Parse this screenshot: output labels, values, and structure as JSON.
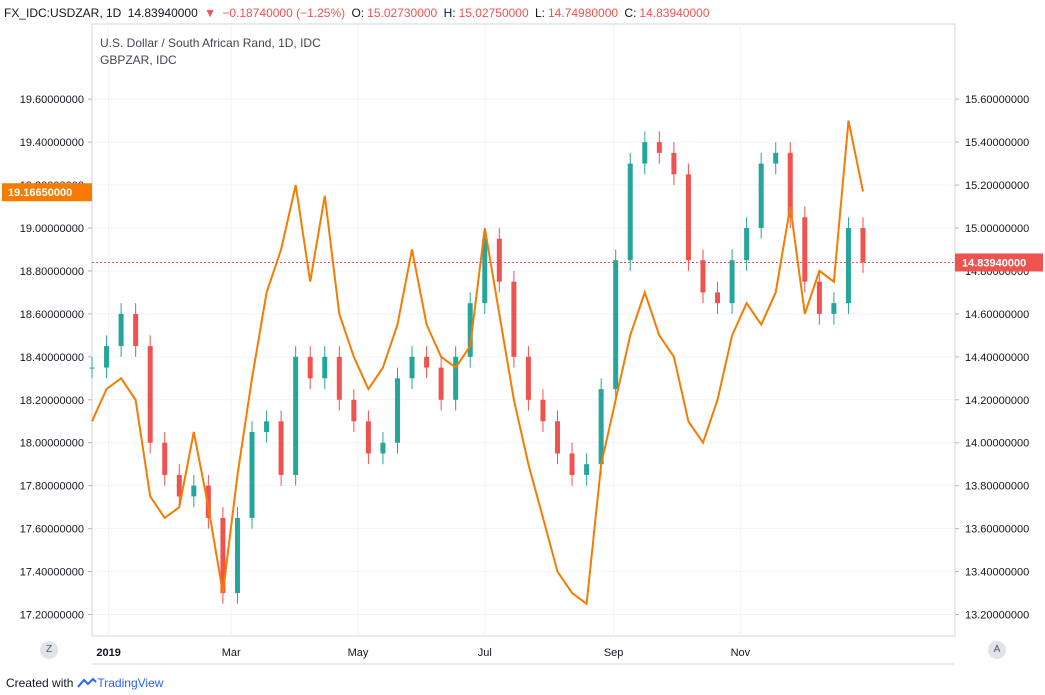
{
  "header": {
    "symbol": "FX_IDC:USDZAR, 1D",
    "last": "14.83940000",
    "change": "−0.18740000 (−1.25%)",
    "o_label": "O:",
    "o": "15.02730000",
    "h_label": "H:",
    "h": "15.02750000",
    "l_label": "L:",
    "l": "14.74980000",
    "c_label": "C:",
    "c": "14.83940000"
  },
  "legend": {
    "main": "U.S. Dollar / South African Rand, 1D, IDC",
    "compare": "GBPZAR, IDC"
  },
  "footer": {
    "created_with": "Created with",
    "brand": "TradingView"
  },
  "corners": {
    "left": "Z",
    "right": "A"
  },
  "colors": {
    "up": "#26a69a",
    "down": "#ef5350",
    "compare": "#f57c00",
    "grid": "#f0f3fa"
  },
  "chart_data": {
    "type": "line",
    "title": "U.S. Dollar / South African Rand, 1D, IDC",
    "x_tick_labels": [
      "2019",
      "Mar",
      "May",
      "Jul",
      "Sep",
      "Nov"
    ],
    "left_axis": {
      "ylim": [
        17.1,
        19.95
      ],
      "tick_labels": [
        "19.60000000",
        "19.40000000",
        "19.20000000",
        "19.00000000",
        "18.80000000",
        "18.60000000",
        "18.40000000",
        "18.20000000",
        "18.00000000",
        "17.80000000",
        "17.60000000",
        "17.40000000",
        "17.20000000"
      ],
      "highlight": "19.16650000"
    },
    "right_axis": {
      "ylim": [
        13.1,
        15.95
      ],
      "tick_labels": [
        "15.60000000",
        "15.40000000",
        "15.20000000",
        "15.00000000",
        "14.80000000",
        "14.60000000",
        "14.40000000",
        "14.20000000",
        "14.00000000",
        "13.80000000",
        "13.60000000",
        "13.40000000",
        "13.20000000"
      ],
      "highlight": "14.83940000"
    },
    "series": [
      {
        "name": "FX_IDC:USDZAR, 1D",
        "kind": "candlestick",
        "axis": "right",
        "points": [
          {
            "x": "2018-12-24",
            "y": 14.35
          },
          {
            "x": "2018-12-31",
            "y": 14.45
          },
          {
            "x": "2019-01-07",
            "y": 14.6
          },
          {
            "x": "2019-01-14",
            "y": 14.45
          },
          {
            "x": "2019-01-21",
            "y": 14.0
          },
          {
            "x": "2019-01-28",
            "y": 13.85
          },
          {
            "x": "2019-02-04",
            "y": 13.75
          },
          {
            "x": "2019-02-11",
            "y": 13.8
          },
          {
            "x": "2019-02-18",
            "y": 13.65
          },
          {
            "x": "2019-02-25",
            "y": 13.3
          },
          {
            "x": "2019-03-04",
            "y": 13.65
          },
          {
            "x": "2019-03-11",
            "y": 14.05
          },
          {
            "x": "2019-03-18",
            "y": 14.1
          },
          {
            "x": "2019-03-25",
            "y": 13.85
          },
          {
            "x": "2019-04-01",
            "y": 14.4
          },
          {
            "x": "2019-04-08",
            "y": 14.3
          },
          {
            "x": "2019-04-15",
            "y": 14.4
          },
          {
            "x": "2019-04-22",
            "y": 14.2
          },
          {
            "x": "2019-04-29",
            "y": 14.1
          },
          {
            "x": "2019-05-06",
            "y": 13.95
          },
          {
            "x": "2019-05-13",
            "y": 14.0
          },
          {
            "x": "2019-05-20",
            "y": 14.3
          },
          {
            "x": "2019-05-27",
            "y": 14.4
          },
          {
            "x": "2019-06-03",
            "y": 14.35
          },
          {
            "x": "2019-06-10",
            "y": 14.2
          },
          {
            "x": "2019-06-17",
            "y": 14.4
          },
          {
            "x": "2019-06-24",
            "y": 14.65
          },
          {
            "x": "2019-07-01",
            "y": 14.95
          },
          {
            "x": "2019-07-08",
            "y": 14.75
          },
          {
            "x": "2019-07-15",
            "y": 14.4
          },
          {
            "x": "2019-07-22",
            "y": 14.2
          },
          {
            "x": "2019-07-29",
            "y": 14.1
          },
          {
            "x": "2019-08-05",
            "y": 13.95
          },
          {
            "x": "2019-08-12",
            "y": 13.85
          },
          {
            "x": "2019-08-19",
            "y": 13.9
          },
          {
            "x": "2019-08-26",
            "y": 14.25
          },
          {
            "x": "2019-09-02",
            "y": 14.85
          },
          {
            "x": "2019-09-09",
            "y": 15.3
          },
          {
            "x": "2019-09-16",
            "y": 15.4
          },
          {
            "x": "2019-09-23",
            "y": 15.35
          },
          {
            "x": "2019-09-30",
            "y": 15.25
          },
          {
            "x": "2019-10-07",
            "y": 14.85
          },
          {
            "x": "2019-10-14",
            "y": 14.7
          },
          {
            "x": "2019-10-21",
            "y": 14.65
          },
          {
            "x": "2019-10-28",
            "y": 14.85
          },
          {
            "x": "2019-11-04",
            "y": 15.0
          },
          {
            "x": "2019-11-11",
            "y": 15.3
          },
          {
            "x": "2019-11-18",
            "y": 15.35
          },
          {
            "x": "2019-11-25",
            "y": 15.05
          },
          {
            "x": "2019-12-02",
            "y": 14.75
          },
          {
            "x": "2019-12-09",
            "y": 14.6
          },
          {
            "x": "2019-12-16",
            "y": 14.65
          },
          {
            "x": "2019-12-23",
            "y": 15.0
          },
          {
            "x": "2019-12-30",
            "y": 14.84
          }
        ]
      },
      {
        "name": "GBPZAR, IDC",
        "kind": "line",
        "axis": "left",
        "points": [
          {
            "x": "2018-12-24",
            "y": 18.1
          },
          {
            "x": "2018-12-31",
            "y": 18.25
          },
          {
            "x": "2019-01-07",
            "y": 18.3
          },
          {
            "x": "2019-01-14",
            "y": 18.2
          },
          {
            "x": "2019-01-21",
            "y": 17.75
          },
          {
            "x": "2019-01-28",
            "y": 17.65
          },
          {
            "x": "2019-02-04",
            "y": 17.7
          },
          {
            "x": "2019-02-11",
            "y": 18.05
          },
          {
            "x": "2019-02-18",
            "y": 17.7
          },
          {
            "x": "2019-02-25",
            "y": 17.3
          },
          {
            "x": "2019-03-04",
            "y": 17.85
          },
          {
            "x": "2019-03-11",
            "y": 18.3
          },
          {
            "x": "2019-03-18",
            "y": 18.7
          },
          {
            "x": "2019-03-25",
            "y": 18.9
          },
          {
            "x": "2019-04-01",
            "y": 19.2
          },
          {
            "x": "2019-04-08",
            "y": 18.75
          },
          {
            "x": "2019-04-15",
            "y": 19.15
          },
          {
            "x": "2019-04-22",
            "y": 18.6
          },
          {
            "x": "2019-04-29",
            "y": 18.4
          },
          {
            "x": "2019-05-06",
            "y": 18.25
          },
          {
            "x": "2019-05-13",
            "y": 18.35
          },
          {
            "x": "2019-05-20",
            "y": 18.55
          },
          {
            "x": "2019-05-27",
            "y": 18.9
          },
          {
            "x": "2019-06-03",
            "y": 18.55
          },
          {
            "x": "2019-06-10",
            "y": 18.4
          },
          {
            "x": "2019-06-17",
            "y": 18.35
          },
          {
            "x": "2019-06-24",
            "y": 18.45
          },
          {
            "x": "2019-07-01",
            "y": 19.0
          },
          {
            "x": "2019-07-08",
            "y": 18.6
          },
          {
            "x": "2019-07-15",
            "y": 18.2
          },
          {
            "x": "2019-07-22",
            "y": 17.9
          },
          {
            "x": "2019-07-29",
            "y": 17.65
          },
          {
            "x": "2019-08-05",
            "y": 17.4
          },
          {
            "x": "2019-08-12",
            "y": 17.3
          },
          {
            "x": "2019-08-19",
            "y": 17.25
          },
          {
            "x": "2019-08-26",
            "y": 17.9
          },
          {
            "x": "2019-09-02",
            "y": 18.2
          },
          {
            "x": "2019-09-09",
            "y": 18.5
          },
          {
            "x": "2019-09-16",
            "y": 18.7
          },
          {
            "x": "2019-09-23",
            "y": 18.5
          },
          {
            "x": "2019-09-30",
            "y": 18.4
          },
          {
            "x": "2019-10-07",
            "y": 18.1
          },
          {
            "x": "2019-10-14",
            "y": 18.0
          },
          {
            "x": "2019-10-21",
            "y": 18.2
          },
          {
            "x": "2019-10-28",
            "y": 18.5
          },
          {
            "x": "2019-11-04",
            "y": 18.65
          },
          {
            "x": "2019-11-11",
            "y": 18.55
          },
          {
            "x": "2019-11-18",
            "y": 18.7
          },
          {
            "x": "2019-11-25",
            "y": 19.1
          },
          {
            "x": "2019-12-02",
            "y": 18.6
          },
          {
            "x": "2019-12-09",
            "y": 18.8
          },
          {
            "x": "2019-12-16",
            "y": 18.75
          },
          {
            "x": "2019-12-23",
            "y": 19.5
          },
          {
            "x": "2019-12-30",
            "y": 19.17
          }
        ]
      }
    ],
    "grid": true,
    "legend_position": "top-left"
  }
}
